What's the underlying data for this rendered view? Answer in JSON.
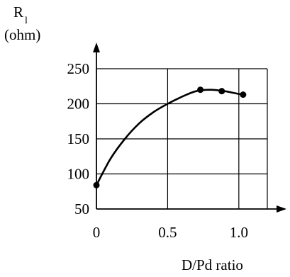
{
  "chart_data": {
    "type": "line",
    "title": "",
    "ylabel_main": "R",
    "ylabel_sub": "l",
    "ylabel_unit": "(ohm)",
    "xlabel": "D/Pd ratio",
    "xlim": [
      0,
      1.2
    ],
    "ylim": [
      50,
      250
    ],
    "x_ticks": [
      {
        "value": 0,
        "label": "0"
      },
      {
        "value": 0.5,
        "label": "0.5"
      },
      {
        "value": 1.0,
        "label": "1.0"
      }
    ],
    "y_ticks": [
      {
        "value": 50,
        "label": "50"
      },
      {
        "value": 100,
        "label": "100"
      },
      {
        "value": 150,
        "label": "150"
      },
      {
        "value": 200,
        "label": "200"
      },
      {
        "value": 250,
        "label": "250"
      }
    ],
    "grid": true,
    "series": [
      {
        "x": [
          0,
          0.73,
          0.88,
          1.03
        ],
        "y": [
          84,
          220,
          218,
          213
        ],
        "curve_x": [
          0,
          0.1,
          0.2,
          0.3,
          0.4,
          0.5,
          0.6,
          0.7,
          0.8,
          0.9,
          1.0,
          1.03
        ],
        "curve_y": [
          84,
          122,
          150,
          172,
          188,
          200,
          210,
          218,
          220,
          218,
          214,
          213
        ]
      }
    ]
  }
}
